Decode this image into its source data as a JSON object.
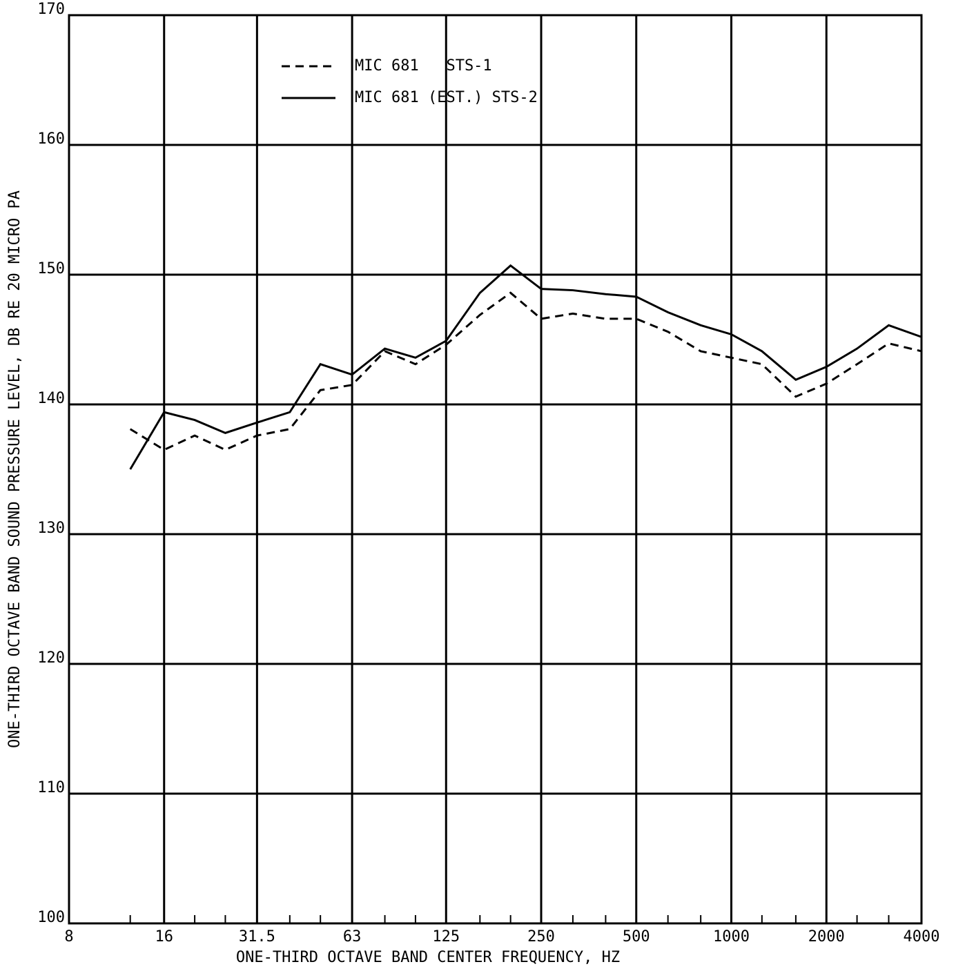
{
  "chart_data": {
    "type": "line",
    "x_label": "ONE-THIRD OCTAVE BAND CENTER FREQUENCY, HZ",
    "y_label": "ONE-THIRD OCTAVE BAND SOUND PRESSURE LEVEL, DB RE 20 MICRO PA",
    "x": [
      12.5,
      16,
      20,
      25,
      31.5,
      40,
      50,
      63,
      80,
      100,
      125,
      160,
      200,
      250,
      315,
      400,
      500,
      630,
      800,
      1000,
      1250,
      1600,
      2000,
      2500,
      3150,
      4000
    ],
    "series": [
      {
        "name": "MIC 681   STS-1",
        "color": "#000000",
        "style": "dashed",
        "values": [
          138.1,
          136.5,
          137.6,
          136.5,
          137.6,
          138.1,
          141.1,
          141.5,
          144.1,
          143.1,
          144.6,
          146.9,
          148.6,
          146.6,
          147.0,
          146.6,
          146.6,
          145.6,
          144.1,
          143.6,
          143.1,
          140.6,
          141.6,
          143.1,
          144.7,
          144.1
        ]
      },
      {
        "name": "MIC 681 (EST.) STS-2",
        "color": "#000000",
        "style": "solid",
        "values": [
          135.0,
          139.4,
          138.8,
          137.8,
          138.6,
          139.4,
          143.1,
          142.3,
          144.3,
          143.6,
          144.9,
          148.6,
          150.7,
          148.9,
          148.8,
          148.5,
          148.3,
          147.1,
          146.1,
          145.4,
          144.1,
          141.9,
          142.9,
          144.3,
          146.1,
          145.2
        ]
      }
    ],
    "xscale": "log",
    "xlim": [
      8,
      4000
    ],
    "xticks": [
      8,
      16,
      31.5,
      63,
      125,
      250,
      500,
      1000,
      2000,
      4000
    ],
    "ylim": [
      100,
      170
    ],
    "yticks": [
      100,
      110,
      120,
      130,
      140,
      150,
      160,
      170
    ],
    "grid": true,
    "legend": "top"
  }
}
